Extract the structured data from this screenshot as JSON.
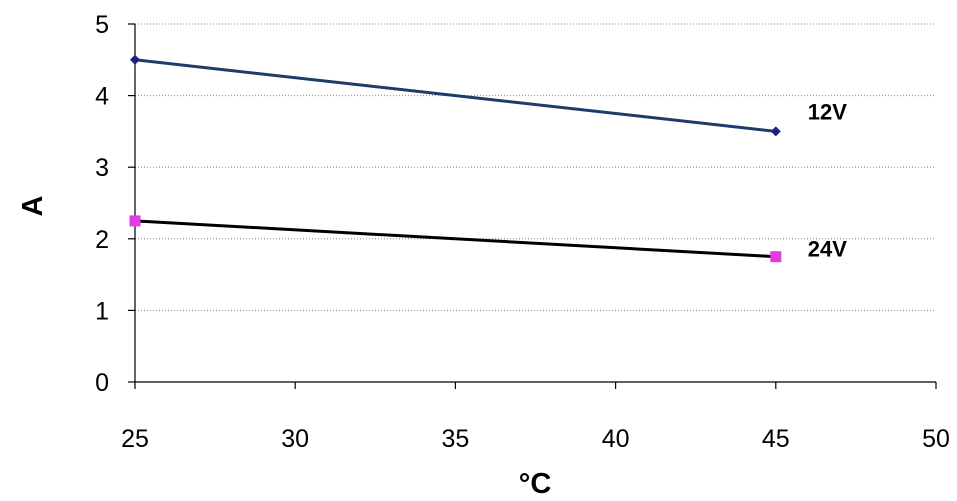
{
  "chart_data": {
    "type": "line",
    "xlabel": "°C",
    "ylabel": "A",
    "xlim": [
      25,
      50
    ],
    "ylim": [
      0,
      5
    ],
    "x_ticks": [
      "25",
      "30",
      "35",
      "40",
      "45",
      "50"
    ],
    "y_ticks": [
      "0",
      "1",
      "2",
      "3",
      "4",
      "5"
    ],
    "grid": "horizontal dotted",
    "series": [
      {
        "name": "12V",
        "x": [
          25,
          45
        ],
        "values": [
          4.5,
          3.5
        ],
        "color": "#1f3a6b",
        "marker": "diamond",
        "marker_color": "#1a237e"
      },
      {
        "name": "24V",
        "x": [
          25,
          45
        ],
        "values": [
          2.25,
          1.75
        ],
        "color": "#000000",
        "marker": "square",
        "marker_color": "#e23be2"
      }
    ]
  }
}
